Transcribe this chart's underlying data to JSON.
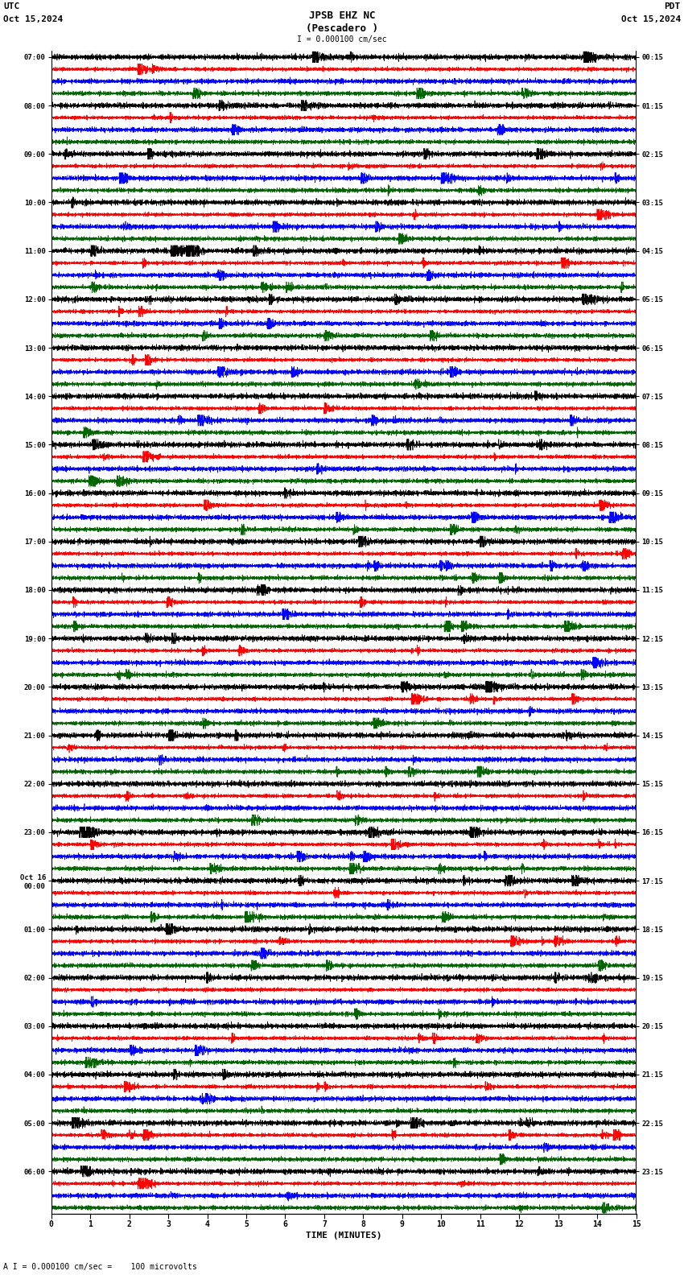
{
  "title_line1": "JPSB EHZ NC",
  "title_line2": "(Pescadero )",
  "scale_label": "I = 0.000100 cm/sec",
  "utc_label": "UTC",
  "pdt_label": "PDT",
  "date_left": "Oct 15,2024",
  "date_right": "Oct 15,2024",
  "bottom_label": "A I = 0.000100 cm/sec =    100 microvolts",
  "xlabel": "TIME (MINUTES)",
  "bg_color": "#ffffff",
  "trace_colors": [
    "black",
    "red",
    "blue",
    "#006400"
  ],
  "n_rows": 24,
  "traces_per_row": 4,
  "minutes": 15,
  "left_times": [
    "07:00",
    "08:00",
    "09:00",
    "10:00",
    "11:00",
    "12:00",
    "13:00",
    "14:00",
    "15:00",
    "16:00",
    "17:00",
    "18:00",
    "19:00",
    "20:00",
    "21:00",
    "22:00",
    "23:00",
    "Oct 16\n00:00",
    "01:00",
    "02:00",
    "03:00",
    "04:00",
    "05:00",
    "06:00"
  ],
  "right_times": [
    "00:15",
    "01:15",
    "02:15",
    "03:15",
    "04:15",
    "05:15",
    "06:15",
    "07:15",
    "08:15",
    "09:15",
    "10:15",
    "11:15",
    "12:15",
    "13:15",
    "14:15",
    "15:15",
    "16:15",
    "17:15",
    "18:15",
    "19:15",
    "20:15",
    "21:15",
    "22:15",
    "23:15"
  ]
}
